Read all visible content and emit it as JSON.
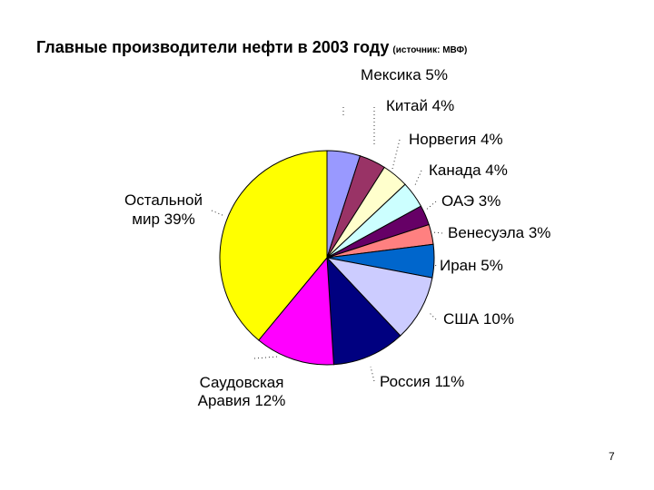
{
  "slide": {
    "page_number": "7"
  },
  "chart_data": {
    "type": "pie",
    "title": "Главные производители нефти в 2003 году",
    "subtitle": "(источник: МВФ)",
    "slices": [
      {
        "label": "Мексика 5%",
        "value": 5,
        "color": "#9999ff"
      },
      {
        "label": "Китай 4%",
        "value": 4,
        "color": "#993366"
      },
      {
        "label": "Норвегия 4%",
        "value": 4,
        "color": "#ffffcc"
      },
      {
        "label": "Канада 4%",
        "value": 4,
        "color": "#ccffff"
      },
      {
        "label": "ОАЭ 3%",
        "value": 3,
        "color": "#660066"
      },
      {
        "label": "Венесуэла 3%",
        "value": 3,
        "color": "#ff8080"
      },
      {
        "label": "Иран 5%",
        "value": 5,
        "color": "#0066cc"
      },
      {
        "label": "США 10%",
        "value": 10,
        "color": "#ccccff"
      },
      {
        "label": "Россия 11%",
        "value": 11,
        "color": "#000080"
      },
      {
        "label": "Саудовская Аравия 12%",
        "label_lines": [
          "Саудовская",
          "Аравия 12%"
        ],
        "value": 12,
        "color": "#ff00ff"
      },
      {
        "label": "Остальной мир 39%",
        "label_lines": [
          "Остальной",
          "мир 39%"
        ],
        "value": 39,
        "color": "#ffff00"
      }
    ],
    "start_angle_deg": 0,
    "direction": "clockwise",
    "legend": "none"
  }
}
